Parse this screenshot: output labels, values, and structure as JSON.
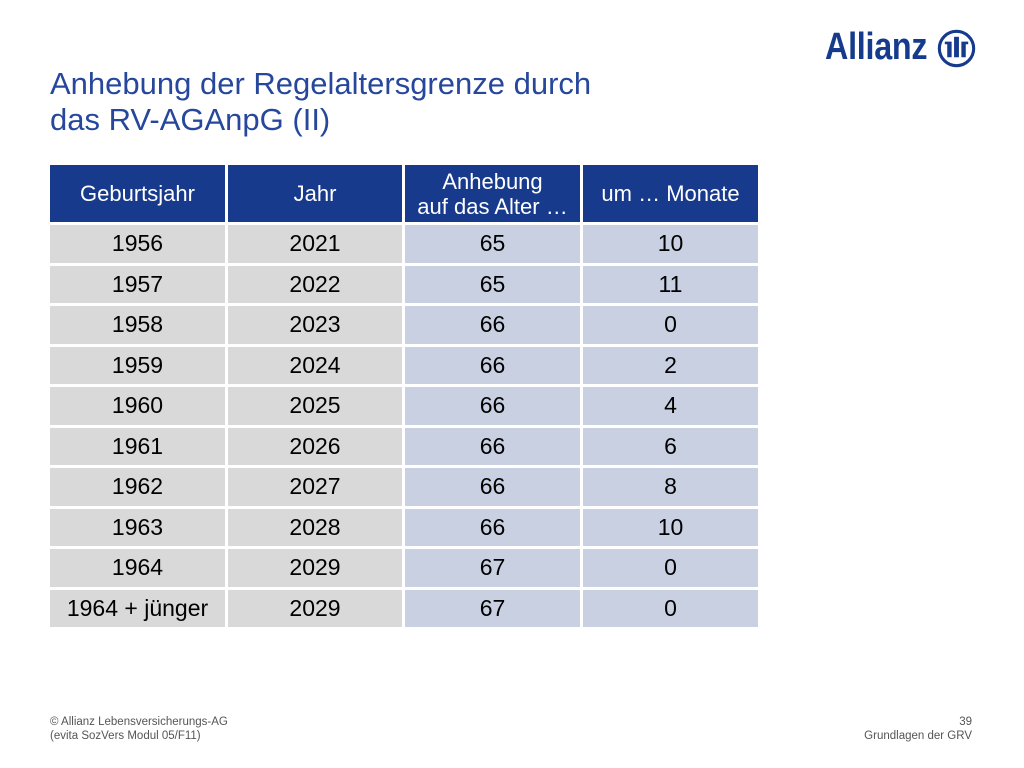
{
  "brand": {
    "name": "Allianz",
    "logo_icon": "allianz-logo-icon"
  },
  "title": {
    "line1": "Anhebung der Regelaltersgrenze durch",
    "line2": "das RV-AGAnpG (II)"
  },
  "table": {
    "headers": [
      "Geburtsjahr",
      "Jahr",
      "Anhebung\nauf das Alter …",
      "um … Monate"
    ],
    "rows": [
      [
        "1956",
        "2021",
        "65",
        "10"
      ],
      [
        "1957",
        "2022",
        "65",
        "11"
      ],
      [
        "1958",
        "2023",
        "66",
        "0"
      ],
      [
        "1959",
        "2024",
        "66",
        "2"
      ],
      [
        "1960",
        "2025",
        "66",
        "4"
      ],
      [
        "1961",
        "2026",
        "66",
        "6"
      ],
      [
        "1962",
        "2027",
        "66",
        "8"
      ],
      [
        "1963",
        "2028",
        "66",
        "10"
      ],
      [
        "1964",
        "2029",
        "67",
        "0"
      ],
      [
        "1964 + jünger",
        "2029",
        "67",
        "0"
      ]
    ]
  },
  "footer": {
    "copyright": "© Allianz Lebensversicherungs-AG",
    "module": "(evita SozVers Modul 05/F11)",
    "page_number": "39",
    "section": "Grundlagen der GRV"
  },
  "colors": {
    "brand": "#163b8c",
    "title": "#26479b",
    "header_bg": "#173a8d",
    "header_text": "#ffffff",
    "cell_grey": "#d9d9d9",
    "cell_blue": "#c8d0e2",
    "cell_text": "#000000",
    "footer_text": "#555555"
  }
}
